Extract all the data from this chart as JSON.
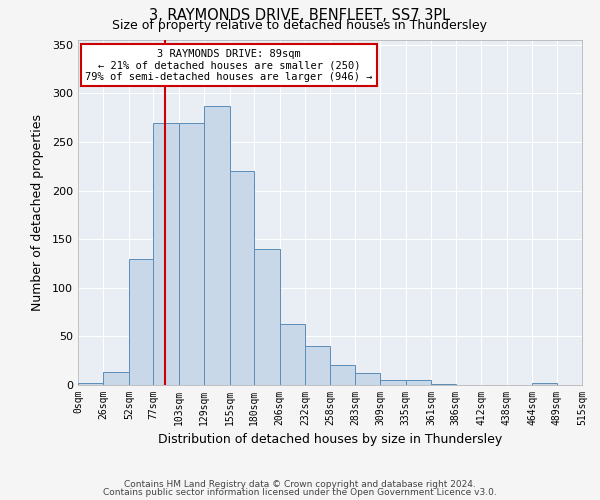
{
  "title1": "3, RAYMONDS DRIVE, BENFLEET, SS7 3PL",
  "title2": "Size of property relative to detached houses in Thundersley",
  "xlabel": "Distribution of detached houses by size in Thundersley",
  "ylabel": "Number of detached properties",
  "bin_labels": [
    "0sqm",
    "26sqm",
    "52sqm",
    "77sqm",
    "103sqm",
    "129sqm",
    "155sqm",
    "180sqm",
    "206sqm",
    "232sqm",
    "258sqm",
    "283sqm",
    "309sqm",
    "335sqm",
    "361sqm",
    "386sqm",
    "412sqm",
    "438sqm",
    "464sqm",
    "489sqm",
    "515sqm"
  ],
  "bin_edges": [
    0,
    26,
    52,
    77,
    103,
    129,
    155,
    180,
    206,
    232,
    258,
    283,
    309,
    335,
    361,
    386,
    412,
    438,
    464,
    489,
    515
  ],
  "bar_heights": [
    2,
    13,
    130,
    270,
    270,
    287,
    220,
    140,
    63,
    40,
    21,
    12,
    5,
    5,
    1,
    0,
    0,
    0,
    2,
    0,
    0
  ],
  "bar_color": "#c8d8e8",
  "bar_edge_color": "#5b8db8",
  "vline_x": 89,
  "vline_color": "#cc0000",
  "annotation_lines": [
    "3 RAYMONDS DRIVE: 89sqm",
    "← 21% of detached houses are smaller (250)",
    "79% of semi-detached houses are larger (946) →"
  ],
  "annotation_box_color": "#ffffff",
  "annotation_box_edge": "#cc0000",
  "ylim": [
    0,
    355
  ],
  "yticks": [
    0,
    50,
    100,
    150,
    200,
    250,
    300,
    350
  ],
  "background_color": "#e8eef4",
  "grid_color": "#ffffff",
  "footer1": "Contains HM Land Registry data © Crown copyright and database right 2024.",
  "footer2": "Contains public sector information licensed under the Open Government Licence v3.0."
}
